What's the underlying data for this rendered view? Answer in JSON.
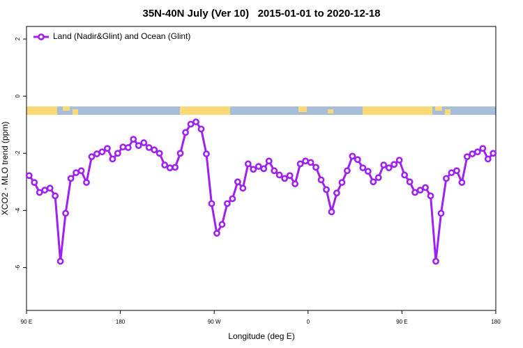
{
  "chart_data": {
    "type": "line",
    "title": "35N-40N July (Ver 10)   2015-01-01 to 2020-12-18",
    "xlabel": "Longitude (deg E)",
    "ylabel": "XCO2 - MLO trend (ppm)",
    "xlim": [
      90,
      540
    ],
    "ylim": [
      -7.5,
      2.44
    ],
    "xticks": [
      {
        "value": 90,
        "label": "90 E"
      },
      180,
      {
        "value": 270,
        "label": "90 W"
      },
      {
        "value": 360,
        "label": "0"
      },
      {
        "value": 450,
        "label": "90 E"
      },
      {
        "value": 540,
        "label": "180"
      }
    ],
    "yticks": [
      -6,
      -4,
      -2,
      0,
      2
    ],
    "legend": "top-left",
    "x": [
      92.5,
      97.5,
      102.5,
      107.5,
      112.5,
      117.5,
      122.5,
      127.5,
      132.5,
      137.5,
      142.5,
      147.5,
      152.5,
      157.5,
      162.5,
      167.5,
      172.5,
      177.5,
      182.5,
      187.5,
      192.5,
      197.5,
      202.5,
      207.5,
      212.5,
      217.5,
      222.5,
      227.5,
      232.5,
      237.5,
      242.5,
      247.5,
      252.5,
      257.5,
      262.5,
      267.5,
      272.5,
      277.5,
      282.5,
      287.5,
      292.5,
      297.5,
      302.5,
      307.5,
      312.5,
      317.5,
      322.5,
      327.5,
      332.5,
      337.5,
      342.5,
      347.5,
      352.5,
      357.5,
      362.5,
      367.5,
      372.5,
      377.5,
      382.5,
      387.5,
      392.5,
      397.5,
      402.5,
      407.5,
      412.5,
      417.5,
      422.5,
      427.5,
      432.5,
      437.5,
      442.5,
      447.5,
      452.5,
      457.5,
      462.5,
      467.5,
      472.5,
      477.5,
      482.5,
      487.5,
      492.5,
      497.5,
      502.5,
      507.5,
      512.5,
      517.5,
      522.5,
      527.5,
      532.5,
      537.5
    ],
    "series": [
      {
        "name": "Land (Nadir&Glint) and Ocean (Glint)",
        "color": "#a020f0",
        "values": [
          -2.78,
          -3.02,
          -3.37,
          -3.29,
          -3.22,
          -3.49,
          -5.78,
          -4.1,
          -2.88,
          -2.68,
          -2.61,
          -3.02,
          -2.12,
          -2.02,
          -1.95,
          -1.83,
          -2.2,
          -2.0,
          -1.78,
          -1.8,
          -1.51,
          -1.73,
          -1.63,
          -1.8,
          -1.88,
          -2.0,
          -2.41,
          -2.51,
          -2.49,
          -2.0,
          -1.27,
          -0.98,
          -0.9,
          -1.15,
          -2.02,
          -3.76,
          -4.8,
          -4.49,
          -3.76,
          -3.59,
          -3.0,
          -3.22,
          -2.37,
          -2.56,
          -2.46,
          -2.54,
          -2.27,
          -2.61,
          -2.76,
          -2.88,
          -2.78,
          -3.07,
          -2.37,
          -2.27,
          -2.32,
          -2.49,
          -2.93,
          -3.27,
          -4.05,
          -3.39,
          -3.02,
          -2.61,
          -2.1,
          -2.22,
          -2.51,
          -2.63,
          -3.0,
          -2.85,
          -2.41,
          -2.51,
          -2.39,
          -2.24,
          -2.76,
          -3.0,
          -3.37,
          -3.29,
          -3.2,
          -3.49,
          -5.78,
          -4.1,
          -2.88,
          -2.68,
          -2.61,
          -3.02,
          -2.12,
          -2.02,
          -1.95,
          -1.83,
          -2.2,
          -2.0
        ]
      }
    ]
  }
}
